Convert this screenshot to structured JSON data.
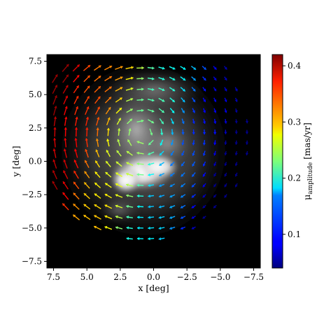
{
  "chart_data": {
    "type": "vector-field",
    "xlabel": "x [deg]",
    "ylabel": "y [deg]",
    "xlim": [
      8.0,
      -8.0
    ],
    "ylim": [
      -8.0,
      8.0
    ],
    "x_ticks": [
      7.5,
      5.0,
      2.5,
      0.0,
      -2.5,
      -5.0,
      -7.5
    ],
    "x_tick_labels": [
      "7.5",
      "5.0",
      "2.5",
      "0.0",
      "−2.5",
      "−5.0",
      "−7.5"
    ],
    "y_ticks": [
      7.5,
      5.0,
      2.5,
      0.0,
      -2.5,
      -5.0,
      -7.5
    ],
    "y_tick_labels": [
      "7.5",
      "5.0",
      "2.5",
      "0.0",
      "−2.5",
      "−5.0",
      "−7.5"
    ],
    "background": "grayscale stellar density map",
    "colorbar": {
      "label": "μ",
      "label_subscript": "amplitude",
      "label_unit": " [mas/yr]",
      "range": [
        0.04,
        0.42
      ],
      "ticks": [
        0.1,
        0.2,
        0.3,
        0.4
      ],
      "tick_labels": [
        "0.1",
        "0.2",
        "0.3",
        "0.4"
      ],
      "colormap": "jet"
    },
    "field": {
      "grid_spacing_deg": 0.8,
      "center_deg": [
        0.8,
        2.0
      ],
      "max_radius_deg": 8.0,
      "rotation": "clockwise",
      "amplitude_gradient": "decreasing from +x (east, left) to -x (west, right)"
    }
  }
}
